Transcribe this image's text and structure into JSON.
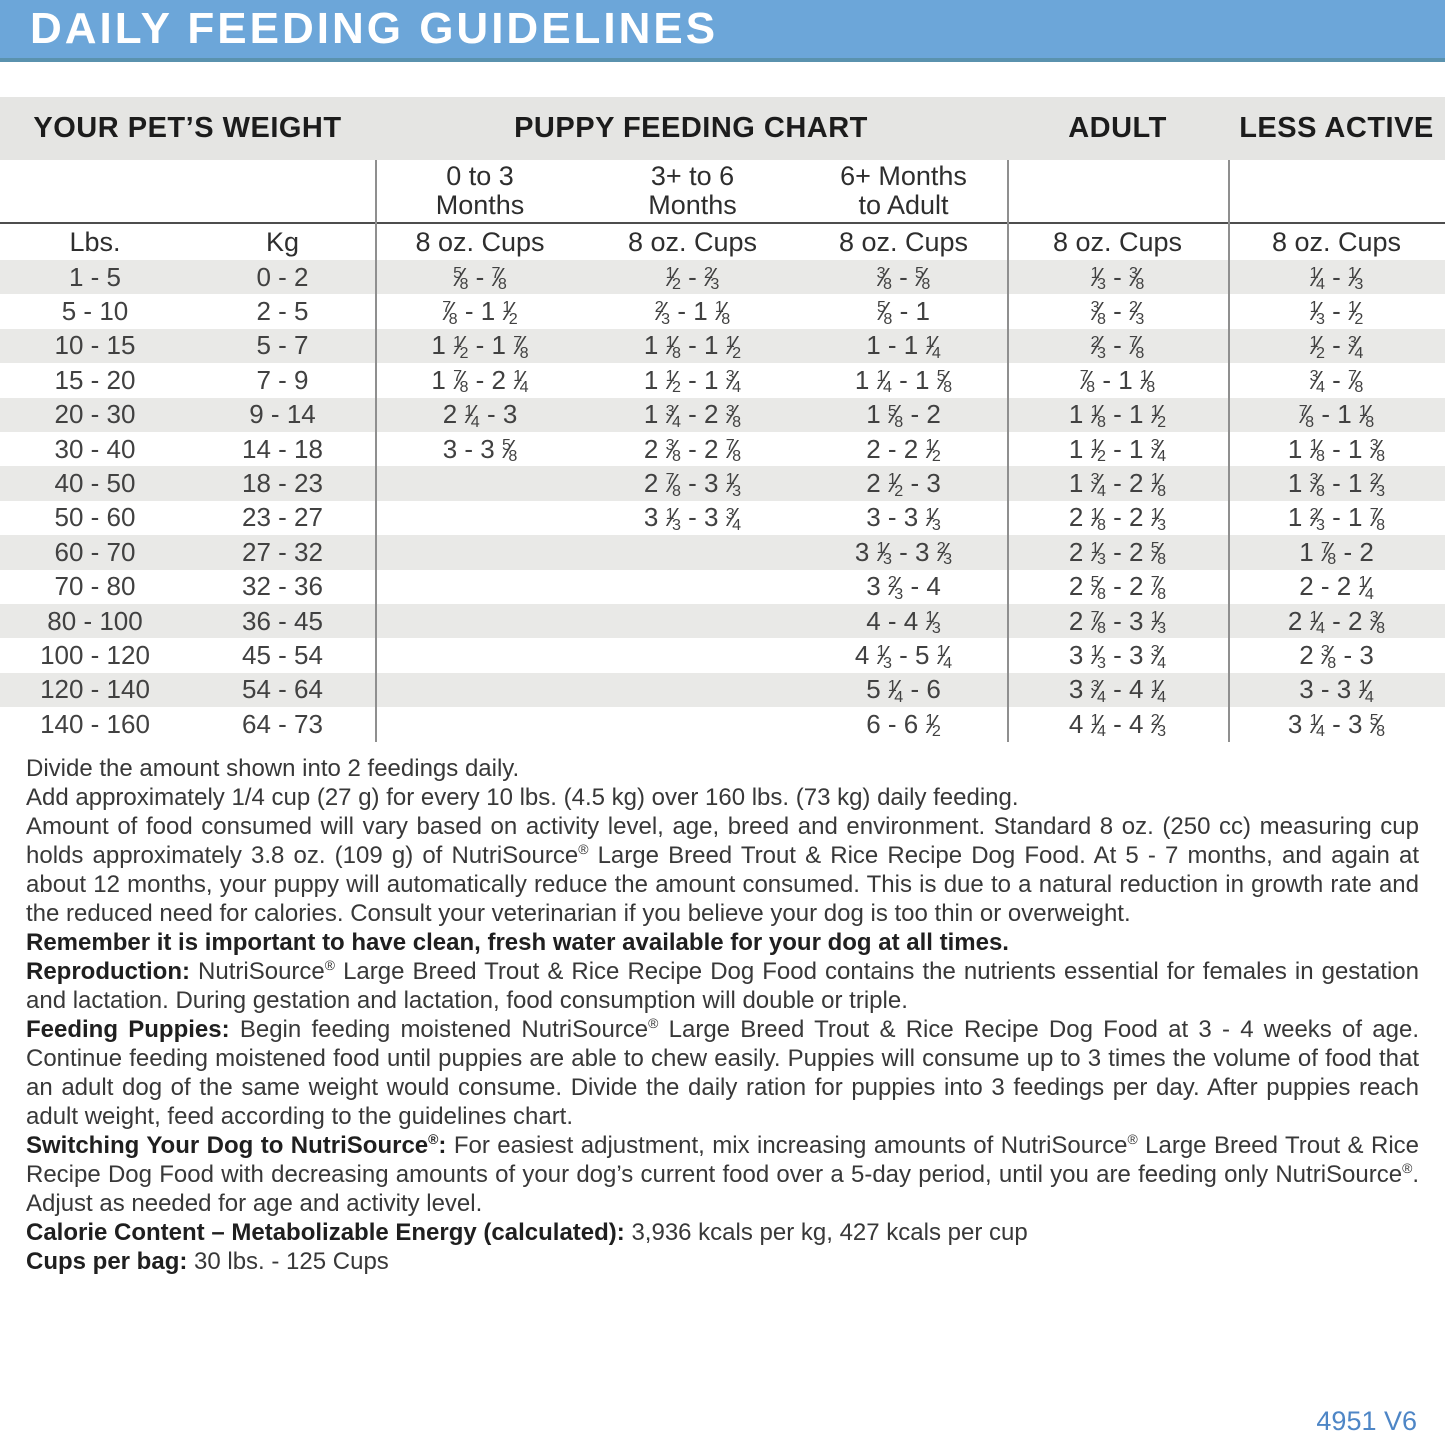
{
  "title": "DAILY FEEDING GUIDELINES",
  "colors": {
    "header_bg": "#6CA6D9",
    "header_edge": "#5A92AE",
    "band": "#E5E5E3",
    "stripe": "#E9E9E7",
    "divider": "#8F8F8F",
    "rule": "#4D4D4D",
    "code_text": "#4E86C6"
  },
  "table": {
    "group_headers": [
      "YOUR PET’S WEIGHT",
      "PUPPY FEEDING CHART",
      "ADULT",
      "LESS ACTIVE"
    ],
    "age_headers": [
      "0 to 3\nMonths",
      "3+ to 6\nMonths",
      "6+ Months\nto Adult"
    ],
    "unit_headers": [
      "Lbs.",
      "Kg",
      "8 oz. Cups",
      "8 oz. Cups",
      "8 oz. Cups",
      "8 oz. Cups",
      "8 oz. Cups"
    ],
    "rows": [
      [
        "1 - 5",
        "0 - 2",
        "5/8 - 7/8",
        "1/2 - 2/3",
        "3/8 - 5/8",
        "1/3 - 3/8",
        "1/4 - 1/3"
      ],
      [
        "5 - 10",
        "2 - 5",
        "7/8 - 1 1/2",
        "2/3 - 1 1/8",
        "5/8 - 1",
        "3/8 - 2/3",
        "1/3 - 1/2"
      ],
      [
        "10 - 15",
        "5 - 7",
        "1 1/2 - 1 7/8",
        "1 1/8 - 1 1/2",
        "1 - 1 1/4",
        "2/3 - 7/8",
        "1/2 - 3/4"
      ],
      [
        "15 - 20",
        "7 - 9",
        "1 7/8 - 2 1/4",
        "1 1/2 - 1 3/4",
        "1 1/4 - 1 5/8",
        "7/8 - 1 1/8",
        "3/4 - 7/8"
      ],
      [
        "20 - 30",
        "9 - 14",
        "2 1/4 - 3",
        "1 3/4 - 2 3/8",
        "1 5/8 - 2",
        "1 1/8 - 1 1/2",
        "7/8 - 1 1/8"
      ],
      [
        "30 - 40",
        "14 - 18",
        "3 - 3 5/8",
        "2 3/8 - 2 7/8",
        "2 - 2 1/2",
        "1 1/2 - 1 3/4",
        "1 1/8 - 1 3/8"
      ],
      [
        "40 - 50",
        "18 - 23",
        "",
        "2 7/8 - 3 1/3",
        "2 1/2 - 3",
        "1 3/4 - 2 1/8",
        "1 3/8 - 1 2/3"
      ],
      [
        "50 - 60",
        "23 - 27",
        "",
        "3 1/3 - 3 3/4",
        "3 - 3 1/3",
        "2 1/8 - 2 1/3",
        "1 2/3 - 1 7/8"
      ],
      [
        "60 - 70",
        "27 - 32",
        "",
        "",
        "3 1/3 - 3 2/3",
        "2 1/3 - 2 5/8",
        "1 7/8 - 2"
      ],
      [
        "70 - 80",
        "32 - 36",
        "",
        "",
        "3 2/3 - 4",
        "2 5/8 - 2 7/8",
        "2 - 2 1/4"
      ],
      [
        "80 - 100",
        "36 - 45",
        "",
        "",
        "4 - 4 1/3",
        "2 7/8 - 3 1/3",
        "2 1/4 - 2 3/8"
      ],
      [
        "100 - 120",
        "45 - 54",
        "",
        "",
        "4 1/3 - 5 1/4",
        "3 1/3 - 3 3/4",
        "2 3/8 - 3"
      ],
      [
        "120 - 140",
        "54 - 64",
        "",
        "",
        "5 1/4 - 6",
        "3 3/4 - 4 1/4",
        "3 - 3 1/4"
      ],
      [
        "140 - 160",
        "64 - 73",
        "",
        "",
        "6 - 6 1/2",
        "4 1/4 - 4 2/3",
        "3 1/4 - 3 5/8"
      ]
    ]
  },
  "notes": {
    "line1": "Divide the amount shown into 2 feedings daily.",
    "line2": "Add approximately 1/4 cup (27 g) for every 10 lbs. (4.5 kg) over 160 lbs. (73 kg) daily feeding.",
    "para": "Amount of food consumed will vary based on activity level, age, breed and environment. Standard 8 oz. (250 cc) measuring cup holds approximately 3.8 oz. (109 g) of NutriSource® Large Breed Trout & Rice Recipe Dog Food. At 5 - 7 months, and again at about 12 months, your puppy will automatically reduce the amount consumed. This is due to a natural reduction in growth rate and the reduced need for calories. Consult your veterinarian if you believe your dog is too thin or overweight.",
    "remember": "Remember it is important to have clean, fresh water available for your dog at all times."
  },
  "sections": [
    {
      "lead": "Reproduction:",
      "body": "NutriSource® Large Breed Trout & Rice Recipe Dog Food contains the nutrients essential for females in gestation and lactation. During gestation and lactation, food consumption will double or triple."
    },
    {
      "lead": "Feeding Puppies:",
      "body": "Begin feeding moistened NutriSource® Large Breed Trout & Rice Recipe Dog Food at 3 - 4 weeks of age. Continue feeding moistened food until puppies are able to chew easily. Puppies will consume up to 3 times the volume of food that an adult dog of the same weight would consume. Divide the daily ration for puppies into 3 feedings per day. After puppies reach adult weight, feed according to the guidelines chart."
    },
    {
      "lead": "Switching Your Dog to NutriSource®:",
      "body": "For easiest adjustment, mix increasing amounts of NutriSource® Large Breed Trout & Rice Recipe Dog Food with decreasing amounts of your dog’s current food over a 5-day period, until you are feeding only NutriSource®. Adjust as needed for age and activity level."
    }
  ],
  "calorie_content": {
    "lead": "Calorie Content – Metabolizable Energy (calculated):",
    "value": "3,936 kcals per kg, 427 kcals per cup"
  },
  "cups_per_bag": {
    "lead": "Cups per bag:",
    "value": "30 lbs. -  125 Cups"
  },
  "code": "4951 V6"
}
